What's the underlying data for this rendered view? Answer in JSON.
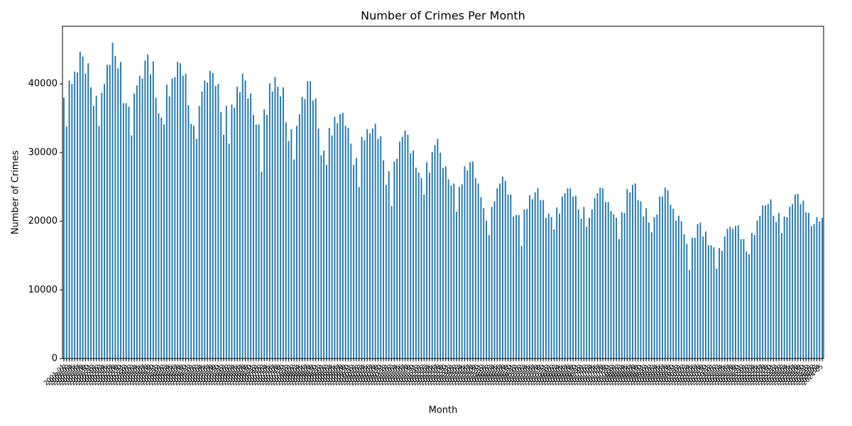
{
  "chart_data": {
    "type": "bar",
    "title": "Number of Crimes Per Month",
    "x_label": "Month",
    "y_label": "Number of Crimes",
    "color": "#1f77b4",
    "categories": [
      "2001-01",
      "2001-02",
      "2001-03",
      "2001-04",
      "2001-05",
      "2001-06",
      "2001-07",
      "2001-08",
      "2001-09",
      "2001-10",
      "2001-11",
      "2001-12",
      "2002-01",
      "2002-02",
      "2002-03",
      "2002-04",
      "2002-05",
      "2002-06",
      "2002-07",
      "2002-08",
      "2002-09",
      "2002-10",
      "2002-11",
      "2002-12",
      "2003-01",
      "2003-02",
      "2003-03",
      "2003-04",
      "2003-05",
      "2003-06",
      "2003-07",
      "2003-08",
      "2003-09",
      "2003-10",
      "2003-11",
      "2003-12",
      "2004-01",
      "2004-02",
      "2004-03",
      "2004-04",
      "2004-05",
      "2004-06",
      "2004-07",
      "2004-08",
      "2004-09",
      "2004-10",
      "2004-11",
      "2004-12",
      "2005-01",
      "2005-02",
      "2005-03",
      "2005-04",
      "2005-05",
      "2005-06",
      "2005-07",
      "2005-08",
      "2005-09",
      "2005-10",
      "2005-11",
      "2005-12",
      "2006-01",
      "2006-02",
      "2006-03",
      "2006-04",
      "2006-05",
      "2006-06",
      "2006-07",
      "2006-08",
      "2006-09",
      "2006-10",
      "2006-11",
      "2006-12",
      "2007-01",
      "2007-02",
      "2007-03",
      "2007-04",
      "2007-05",
      "2007-06",
      "2007-07",
      "2007-08",
      "2007-09",
      "2007-10",
      "2007-11",
      "2007-12",
      "2008-01",
      "2008-02",
      "2008-03",
      "2008-04",
      "2008-05",
      "2008-06",
      "2008-07",
      "2008-08",
      "2008-09",
      "2008-10",
      "2008-11",
      "2008-12",
      "2009-01",
      "2009-02",
      "2009-03",
      "2009-04",
      "2009-05",
      "2009-06",
      "2009-07",
      "2009-08",
      "2009-09",
      "2009-10",
      "2009-11",
      "2009-12",
      "2010-01",
      "2010-02",
      "2010-03",
      "2010-04",
      "2010-05",
      "2010-06",
      "2010-07",
      "2010-08",
      "2010-09",
      "2010-10",
      "2010-11",
      "2010-12",
      "2011-01",
      "2011-02",
      "2011-03",
      "2011-04",
      "2011-05",
      "2011-06",
      "2011-07",
      "2011-08",
      "2011-09",
      "2011-10",
      "2011-11",
      "2011-12",
      "2012-01",
      "2012-02",
      "2012-03",
      "2012-04",
      "2012-05",
      "2012-06",
      "2012-07",
      "2012-08",
      "2012-09",
      "2012-10",
      "2012-11",
      "2012-12",
      "2013-01",
      "2013-02",
      "2013-03",
      "2013-04",
      "2013-05",
      "2013-06",
      "2013-07",
      "2013-08",
      "2013-09",
      "2013-10",
      "2013-11",
      "2013-12",
      "2014-01",
      "2014-02",
      "2014-03",
      "2014-04",
      "2014-05",
      "2014-06",
      "2014-07",
      "2014-08",
      "2014-09",
      "2014-10",
      "2014-11",
      "2014-12",
      "2015-01",
      "2015-02",
      "2015-03",
      "2015-04",
      "2015-05",
      "2015-06",
      "2015-07",
      "2015-08",
      "2015-09",
      "2015-10",
      "2015-11",
      "2015-12",
      "2016-01",
      "2016-02",
      "2016-03",
      "2016-04",
      "2016-05",
      "2016-06",
      "2016-07",
      "2016-08",
      "2016-09",
      "2016-10",
      "2016-11",
      "2016-12",
      "2017-01",
      "2017-02",
      "2017-03",
      "2017-04",
      "2017-05",
      "2017-06",
      "2017-07",
      "2017-08",
      "2017-09",
      "2017-10",
      "2017-11",
      "2017-12",
      "2018-01",
      "2018-02",
      "2018-03",
      "2018-04",
      "2018-05",
      "2018-06",
      "2018-07",
      "2018-08",
      "2018-09",
      "2018-10",
      "2018-11",
      "2018-12",
      "2019-01",
      "2019-02",
      "2019-03",
      "2019-04",
      "2019-05",
      "2019-06",
      "2019-07",
      "2019-08",
      "2019-09",
      "2019-10",
      "2019-11",
      "2019-12",
      "2020-01",
      "2020-02",
      "2020-03",
      "2020-04",
      "2020-05",
      "2020-06",
      "2020-07",
      "2020-08",
      "2020-09",
      "2020-10",
      "2020-11",
      "2020-12",
      "2021-01",
      "2021-02",
      "2021-03",
      "2021-04",
      "2021-05",
      "2021-06",
      "2021-07",
      "2021-08",
      "2021-09",
      "2021-10",
      "2021-11",
      "2021-12",
      "2022-01",
      "2022-02",
      "2022-03",
      "2022-04",
      "2022-05",
      "2022-06",
      "2022-07",
      "2022-08",
      "2022-09",
      "2022-10",
      "2022-11",
      "2022-12",
      "2023-01",
      "2023-02",
      "2023-03",
      "2023-04",
      "2023-05",
      "2023-06",
      "2023-07",
      "2023-08",
      "2023-09",
      "2023-10",
      "2023-11",
      "2023-12",
      "2024-01",
      "2024-02",
      "2024-03",
      "2024-04",
      "2024-05"
    ],
    "values": [
      38000,
      33800,
      40500,
      40000,
      41800,
      41700,
      44700,
      44000,
      41500,
      43000,
      39500,
      36800,
      38300,
      33900,
      38700,
      40000,
      42800,
      42800,
      46000,
      44100,
      42300,
      43200,
      37200,
      37200,
      36700,
      32500,
      38600,
      39800,
      41200,
      40800,
      43400,
      44300,
      41400,
      43300,
      38000,
      35700,
      35100,
      34100,
      39900,
      38200,
      40800,
      41000,
      43200,
      43000,
      41200,
      41500,
      36900,
      34200,
      33900,
      32000,
      36800,
      38900,
      40500,
      40200,
      41900,
      41600,
      39700,
      40000,
      35900,
      32600,
      36800,
      31300,
      37000,
      36500,
      39600,
      38800,
      41500,
      40500,
      37900,
      38600,
      35500,
      34100,
      34100,
      27200,
      36300,
      35500,
      40100,
      38900,
      41000,
      39600,
      38200,
      39500,
      34400,
      31700,
      33400,
      29000,
      33900,
      35600,
      38100,
      37800,
      40400,
      40400,
      37600,
      37900,
      33500,
      29600,
      30300,
      28200,
      33600,
      32500,
      35200,
      34300,
      35600,
      35800,
      33900,
      33600,
      31300,
      28200,
      29200,
      25000,
      32300,
      31800,
      33400,
      32800,
      33500,
      34200,
      32000,
      32400,
      28900,
      25300,
      27300,
      22200,
      28700,
      29100,
      31600,
      32300,
      33200,
      32600,
      29900,
      30300,
      27800,
      27100,
      26300,
      23900,
      28600,
      27100,
      30100,
      31100,
      32000,
      30000,
      27800,
      28000,
      26100,
      25200,
      25500,
      21400,
      25000,
      25400,
      28000,
      27400,
      28600,
      28700,
      26300,
      25500,
      23500,
      21900,
      20100,
      18000,
      22100,
      22900,
      24800,
      25500,
      26500,
      25900,
      23900,
      23900,
      20700,
      20900,
      20900,
      16400,
      21700,
      21800,
      23800,
      23200,
      24200,
      24800,
      23100,
      23100,
      20500,
      21100,
      20600,
      18800,
      22000,
      21100,
      23600,
      24100,
      24800,
      24800,
      23600,
      23700,
      21700,
      20400,
      22100,
      19200,
      20500,
      21700,
      23400,
      24100,
      24900,
      24800,
      22800,
      22800,
      21500,
      21000,
      20500,
      17400,
      21300,
      21200,
      24700,
      24200,
      25300,
      25500,
      23100,
      22900,
      20700,
      21900,
      19800,
      18400,
      20600,
      21000,
      23600,
      23600,
      24900,
      24500,
      22400,
      21800,
      20100,
      20800,
      20000,
      18100,
      16700,
      12900,
      17600,
      17600,
      19600,
      19800,
      17800,
      18500,
      16500,
      16500,
      16200,
      13100,
      16100,
      15700,
      17800,
      18900,
      19200,
      18900,
      19300,
      19400,
      17400,
      17400,
      15600,
      15200,
      18300,
      18000,
      20100,
      20800,
      22300,
      22300,
      22500,
      23200,
      20800,
      19900,
      21200,
      18300,
      20700,
      20600,
      22100,
      22500,
      23900,
      24000,
      22500,
      23000,
      21300,
      21200,
      19300,
      19600,
      20600,
      20000,
      20500
    ],
    "ylim": [
      0,
      48400
    ],
    "yticks": [
      0,
      10000,
      20000,
      30000,
      40000
    ]
  }
}
